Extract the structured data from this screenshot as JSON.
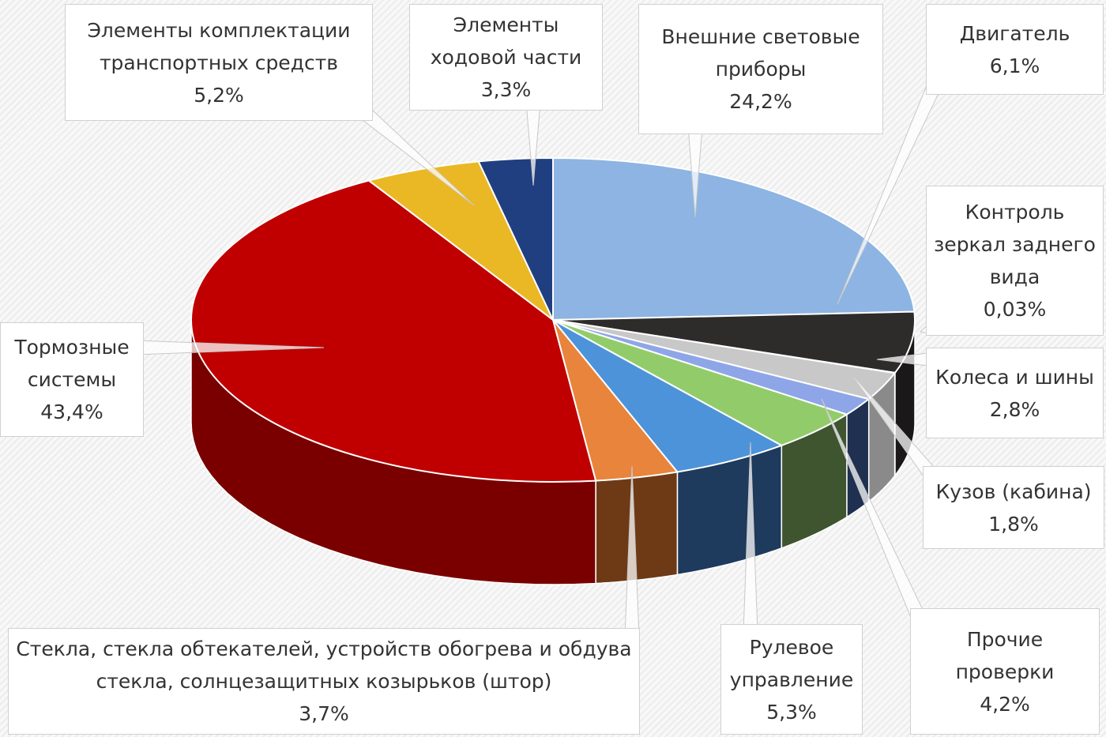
{
  "chart_data": {
    "type": "pie",
    "style": "3d",
    "title": "",
    "legend": "none",
    "slices": [
      {
        "label": "Внешние световые приборы",
        "value_label": "24,2%",
        "value": 24.2,
        "color": "#8db4e2",
        "side": "#5f86b4"
      },
      {
        "label": "Двигатель",
        "value_label": "6,1%",
        "value": 6.1,
        "color": "#2e2b2b",
        "side": "#1a1818"
      },
      {
        "label": "Контроль зеркал заднего вида",
        "value_label": "0,03%",
        "value": 0.03,
        "color": "#a0a0a0",
        "side": "#707070"
      },
      {
        "label": "Колеса и шины",
        "value_label": "2,8%",
        "value": 2.8,
        "color": "#c8c8c8",
        "side": "#8a8a8a"
      },
      {
        "label": "Кузов (кабина)",
        "value_label": "1,8%",
        "value": 1.8,
        "color": "#8ea6e8",
        "side": "#1f3050"
      },
      {
        "label": "Прочие проверки",
        "value_label": "4,2%",
        "value": 4.2,
        "color": "#92cc6a",
        "side": "#3e5530"
      },
      {
        "label": "Рулевое управление",
        "value_label": "5,3%",
        "value": 5.3,
        "color": "#4d93d9",
        "side": "#1e3a5c"
      },
      {
        "label": "Стекла, стекла обтекателей, устройств обогрева и обдува стекла, солнцезащитных козырьков (штор)",
        "value_label": "3,7%",
        "value": 3.7,
        "color": "#e8843c",
        "side": "#6e3a16"
      },
      {
        "label": "Тормозные системы",
        "value_label": "43,4%",
        "value": 43.4,
        "color": "#c00000",
        "side": "#7a0000"
      },
      {
        "label": "Элементы комплектации транспортных средств",
        "value_label": "5,2%",
        "value": 5.2,
        "color": "#eab825",
        "side": "#8a6a10"
      },
      {
        "label": "Элементы ходовой части",
        "value_label": "3,3%",
        "value": 3.3,
        "color": "#1f3f80",
        "side": "#10224a"
      }
    ],
    "label_lines": [
      [
        "Внешние световые",
        "приборы"
      ],
      [
        "Двигатель"
      ],
      [
        "Контроль",
        "зеркал заднего",
        "вида"
      ],
      [
        "Колеса и шины"
      ],
      [
        "Кузов (кабина)"
      ],
      [
        "Прочие",
        "проверки"
      ],
      [
        "Рулевое",
        "управление"
      ],
      [
        "Стекла, стекла обтекателей, устройств обогрева и обдува",
        "стекла, солнцезащитных козырьков (штор)"
      ],
      [
        "Тормозные",
        "системы"
      ],
      [
        "Элементы комплектации",
        "транспортных средств"
      ],
      [
        "Элементы",
        "ходовой части"
      ]
    ]
  }
}
